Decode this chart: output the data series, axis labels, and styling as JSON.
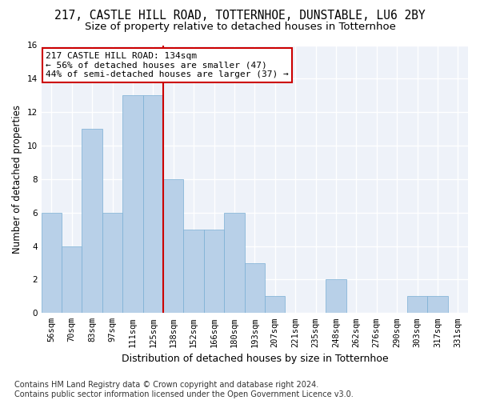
{
  "title": "217, CASTLE HILL ROAD, TOTTERNHOE, DUNSTABLE, LU6 2BY",
  "subtitle": "Size of property relative to detached houses in Totternhoe",
  "xlabel": "Distribution of detached houses by size in Totternhoe",
  "ylabel": "Number of detached properties",
  "categories": [
    "56sqm",
    "70sqm",
    "83sqm",
    "97sqm",
    "111sqm",
    "125sqm",
    "138sqm",
    "152sqm",
    "166sqm",
    "180sqm",
    "193sqm",
    "207sqm",
    "221sqm",
    "235sqm",
    "248sqm",
    "262sqm",
    "276sqm",
    "290sqm",
    "303sqm",
    "317sqm",
    "331sqm"
  ],
  "values": [
    6,
    4,
    11,
    6,
    13,
    13,
    8,
    5,
    5,
    6,
    3,
    1,
    0,
    0,
    2,
    0,
    0,
    0,
    1,
    1,
    0
  ],
  "bar_color": "#b8d0e8",
  "bar_edgecolor": "#7aafd4",
  "bar_linewidth": 0.5,
  "vline_color": "#cc0000",
  "annotation_text": "217 CASTLE HILL ROAD: 134sqm\n← 56% of detached houses are smaller (47)\n44% of semi-detached houses are larger (37) →",
  "annotation_box_facecolor": "#ffffff",
  "annotation_box_edgecolor": "#cc0000",
  "ylim": [
    0,
    16
  ],
  "yticks": [
    0,
    2,
    4,
    6,
    8,
    10,
    12,
    14,
    16
  ],
  "background_color": "#eef2f9",
  "grid_color": "#ffffff",
  "footer": "Contains HM Land Registry data © Crown copyright and database right 2024.\nContains public sector information licensed under the Open Government Licence v3.0.",
  "title_fontsize": 10.5,
  "subtitle_fontsize": 9.5,
  "xlabel_fontsize": 9,
  "ylabel_fontsize": 8.5,
  "tick_fontsize": 7.5,
  "annotation_fontsize": 8,
  "footer_fontsize": 7
}
